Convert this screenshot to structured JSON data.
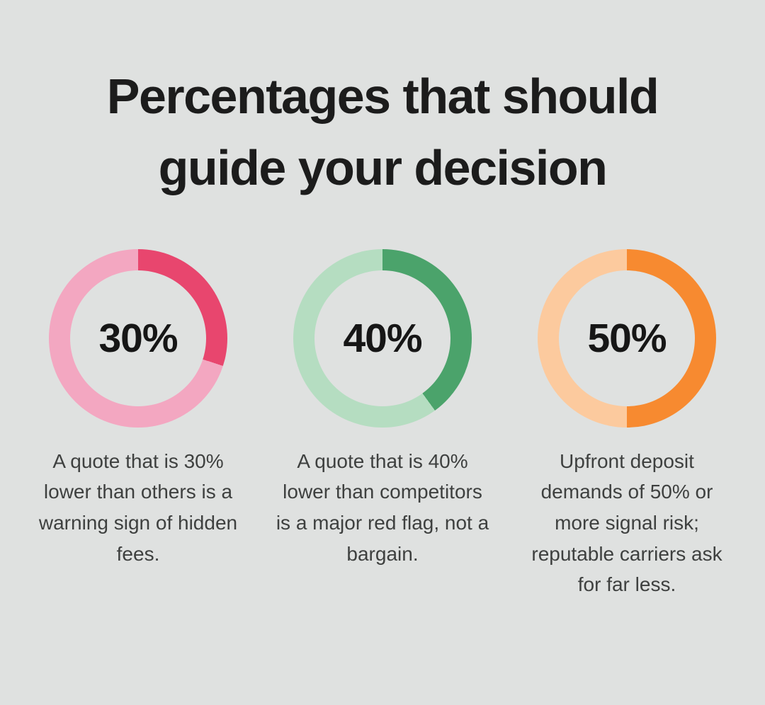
{
  "page": {
    "background": "#dfe1e0",
    "title": "Percentages that should guide your decision",
    "title_color": "#1c1c1c",
    "caption_color": "#3e403f"
  },
  "chart_data": [
    {
      "type": "pie",
      "style": "donut",
      "center_label": "30%",
      "start_angle_deg": 0,
      "direction": "clockwise",
      "slices": [
        {
          "label": "highlighted",
          "value": 30,
          "color": "#e8466e"
        },
        {
          "label": "remainder",
          "value": 70,
          "color": "#f3a7c1"
        }
      ],
      "caption": "A quote that is 30% lower than others is a warning sign of hidden fees."
    },
    {
      "type": "pie",
      "style": "donut",
      "center_label": "40%",
      "start_angle_deg": 0,
      "direction": "clockwise",
      "slices": [
        {
          "label": "highlighted",
          "value": 40,
          "color": "#4ba36b"
        },
        {
          "label": "remainder",
          "value": 60,
          "color": "#b5ddc1"
        }
      ],
      "caption": "A quote that is 40% lower than competitors is a major red flag, not a bargain."
    },
    {
      "type": "pie",
      "style": "donut",
      "center_label": "50%",
      "start_angle_deg": 0,
      "direction": "clockwise",
      "slices": [
        {
          "label": "highlighted",
          "value": 50,
          "color": "#f78a30"
        },
        {
          "label": "remainder",
          "value": 50,
          "color": "#fcca9e"
        }
      ],
      "caption": "Upfront deposit demands of 50% or more signal risk; reputable carriers ask for far less."
    }
  ],
  "cards": [
    {
      "percent": 30,
      "center_label": "30%",
      "fill_color": "#e8466e",
      "track_color": "#f3a7c1",
      "caption": "A quote that is 30% lower than others is a warning sign of hidden fees."
    },
    {
      "percent": 40,
      "center_label": "40%",
      "fill_color": "#4ba36b",
      "track_color": "#b5ddc1",
      "caption": "A quote that is 40% lower than competitors is a major red flag, not a bargain."
    },
    {
      "percent": 50,
      "center_label": "50%",
      "fill_color": "#f78a30",
      "track_color": "#fcca9e",
      "caption": "Upfront deposit demands of 50% or more signal risk; reputable carriers ask for far less."
    }
  ]
}
